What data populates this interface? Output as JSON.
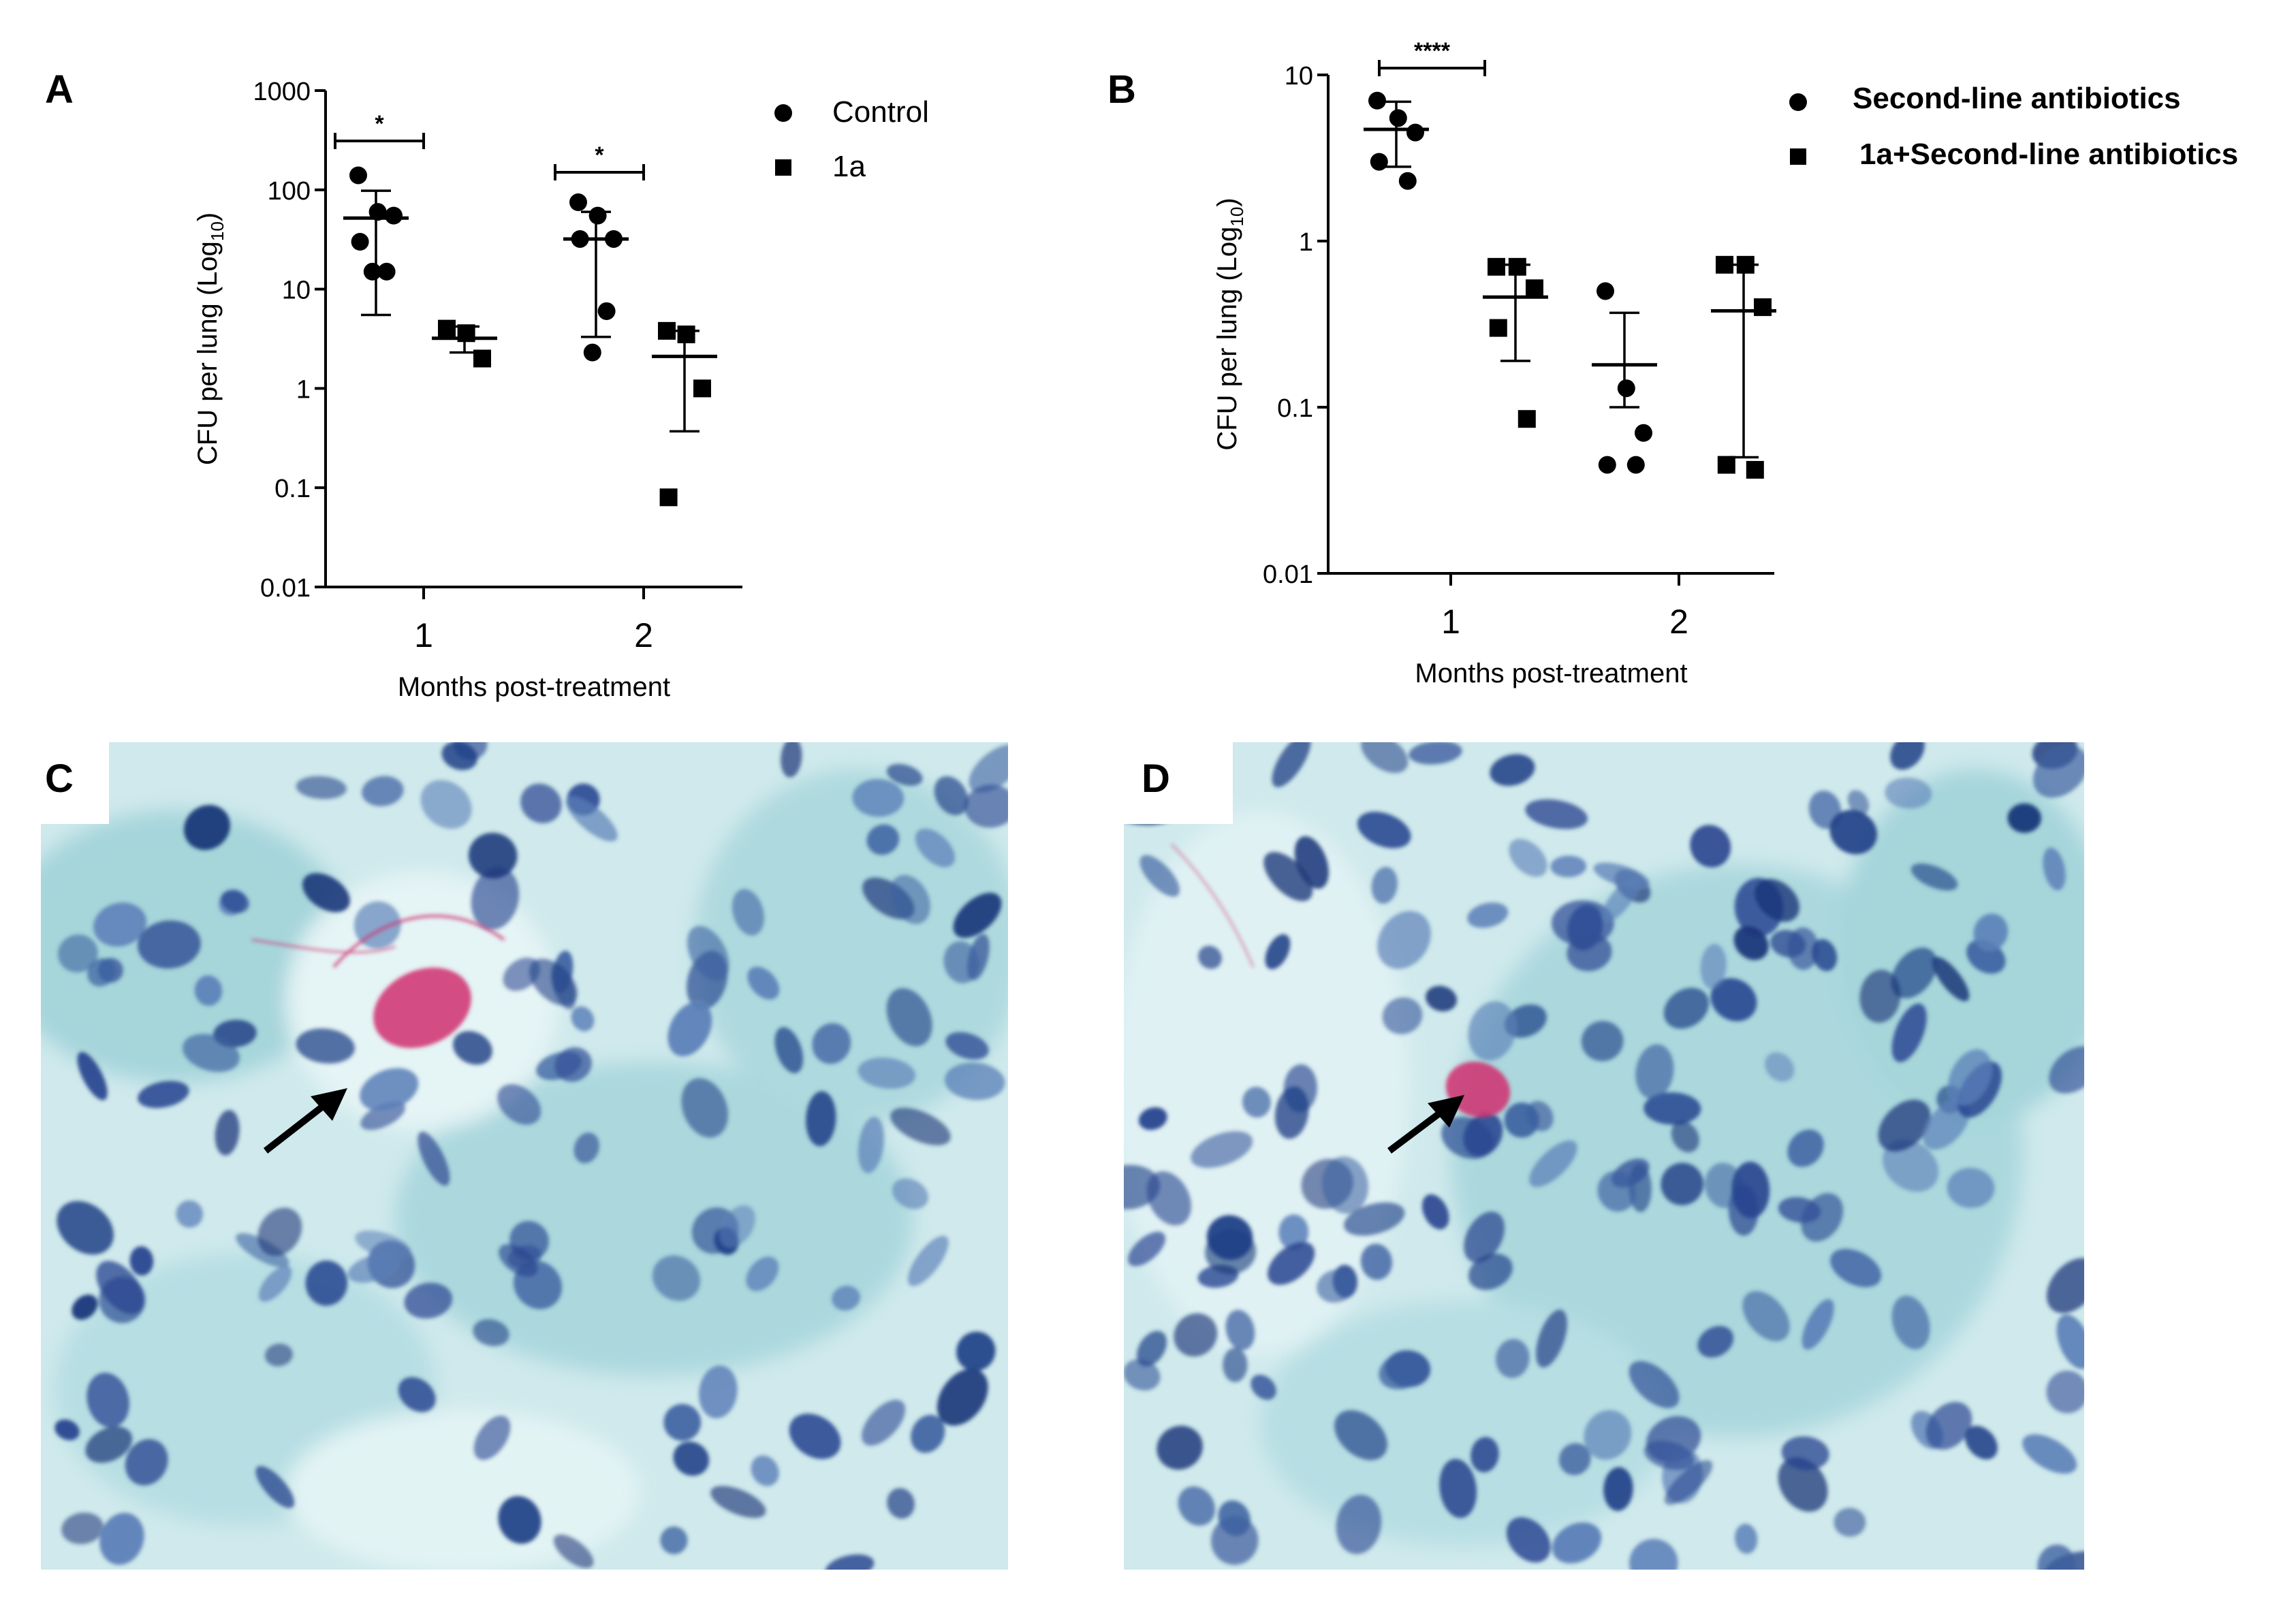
{
  "panels": {
    "A": "A",
    "B": "B",
    "C": "C",
    "D": "D"
  },
  "legendA": {
    "items": [
      {
        "label": "Control",
        "marker": "circle"
      },
      {
        "label": "1a",
        "marker": "square"
      }
    ]
  },
  "legendB": {
    "items": [
      {
        "label": "Second-line antibiotics",
        "marker": "circle"
      },
      {
        "label": "1a+Second-line antibiotics",
        "marker": "square"
      }
    ]
  },
  "chart_data": [
    {
      "id": "A",
      "type": "scatter",
      "yscale": "log",
      "ylim": [
        0.01,
        1000
      ],
      "yticks": [
        "0.01",
        "0.1",
        "1",
        "10",
        "100",
        "1000"
      ],
      "yticks_values": [
        0.01,
        0.1,
        1,
        10,
        100,
        1000
      ],
      "ylabel": "CFU per lung (Log",
      "ylabel_sub": "10",
      "ylabel_end": ")",
      "xlabel": "Months post-treatment",
      "categories": [
        "1",
        "2"
      ],
      "series": [
        {
          "name": "Control",
          "marker": "circle",
          "groups": [
            {
              "category": "1",
              "points": [
                140,
                60,
                55,
                30,
                15,
                15
              ],
              "mean": 52,
              "sd_low": 5.5,
              "sd_high": 98
            },
            {
              "category": "2",
              "points": [
                75,
                55,
                32,
                32,
                6,
                2.3
              ],
              "mean": 32,
              "sd_low": 3.3,
              "sd_high": 60
            }
          ]
        },
        {
          "name": "1a",
          "marker": "square",
          "groups": [
            {
              "category": "1",
              "points": [
                4,
                3.6,
                2
              ],
              "mean": 3.2,
              "sd_low": 2.3,
              "sd_high": 4.2
            },
            {
              "category": "2",
              "points": [
                3.8,
                3.5,
                1,
                0.08
              ],
              "mean": 2.1,
              "sd_low": 0.37,
              "sd_high": 3.8
            }
          ]
        }
      ],
      "significance": [
        {
          "category": "1",
          "label": "*"
        },
        {
          "category": "2",
          "label": "*"
        }
      ]
    },
    {
      "id": "B",
      "type": "scatter",
      "yscale": "log",
      "ylim": [
        0.01,
        10
      ],
      "yticks": [
        "0.01",
        "0.1",
        "1",
        "10"
      ],
      "yticks_values": [
        0.01,
        0.1,
        1,
        10
      ],
      "ylabel": "CFU per lung (Log",
      "ylabel_sub": "10",
      "ylabel_end": ")",
      "xlabel": "Months post-treatment",
      "categories": [
        "1",
        "2"
      ],
      "series": [
        {
          "name": "Second-line antibiotics",
          "marker": "circle",
          "groups": [
            {
              "category": "1",
              "points": [
                7,
                5.5,
                4.5,
                3,
                2.3
              ],
              "mean": 4.7,
              "sd_low": 2.8,
              "sd_high": 6.9
            },
            {
              "category": "2",
              "points": [
                0.5,
                0.13,
                0.07,
                0.045,
                0.045
              ],
              "mean": 0.18,
              "sd_low": 0.1,
              "sd_high": 0.37
            }
          ]
        },
        {
          "name": "1a+Second-line antibiotics",
          "marker": "square",
          "groups": [
            {
              "category": "1",
              "points": [
                0.7,
                0.7,
                0.52,
                0.3,
                0.085
              ],
              "mean": 0.46,
              "sd_low": 0.19,
              "sd_high": 0.72
            },
            {
              "category": "2",
              "points": [
                0.72,
                0.72,
                0.4,
                0.045,
                0.042
              ],
              "mean": 0.38,
              "sd_low": 0.05,
              "sd_high": 0.72
            }
          ]
        }
      ],
      "significance": [
        {
          "category": "1",
          "label": "****"
        }
      ]
    }
  ],
  "colors": {
    "ink": "#000000",
    "tissue_bg": "#bfe3e6",
    "nucleus": "#1f3f86",
    "stain_red": "#d0306e"
  }
}
